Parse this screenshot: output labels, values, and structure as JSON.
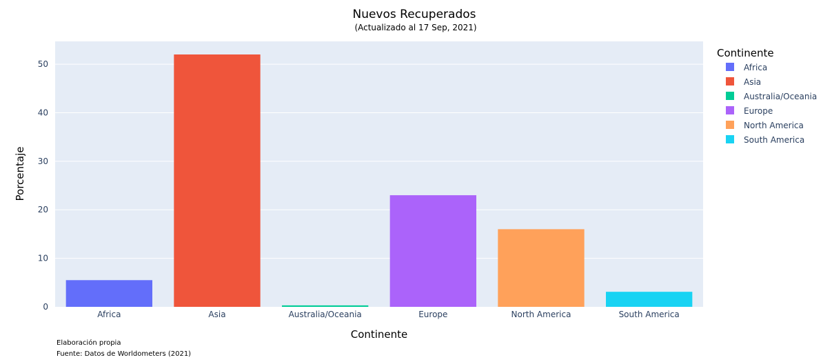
{
  "chart_data": {
    "type": "bar",
    "title": "Nuevos Recuperados",
    "subtitle": "(Actualizado al 17 Sep, 2021)",
    "xlabel": "Continente",
    "ylabel": "Porcentaje",
    "categories": [
      "Africa",
      "Asia",
      "Australia/Oceania",
      "Europe",
      "North America",
      "South America"
    ],
    "values": [
      5.5,
      52,
      0.3,
      23,
      16,
      3.1
    ],
    "colors": [
      "#636efa",
      "#ef553b",
      "#00cc96",
      "#ab63fa",
      "#ffa15a",
      "#19d3f3"
    ],
    "ylim": [
      0,
      54.7
    ],
    "yticks": [
      0,
      10,
      20,
      30,
      40,
      50
    ],
    "grid": true,
    "legend": {
      "title": "Continente",
      "placement": "right",
      "entries": [
        "Africa",
        "Asia",
        "Australia/Oceania",
        "Europe",
        "North America",
        "South America"
      ]
    },
    "annotations": [
      "Elaboración propia",
      "Fuente: Datos de Worldometers (2021)"
    ]
  },
  "theme": {
    "plot_bg": "#e5ecf6",
    "grid_color": "#ffffff"
  }
}
